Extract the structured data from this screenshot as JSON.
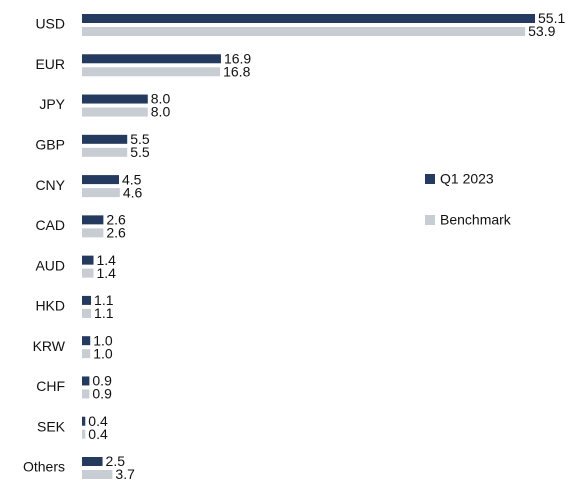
{
  "chart_data": {
    "type": "hbar",
    "categories": [
      "USD",
      "EUR",
      "JPY",
      "GBP",
      "CNY",
      "CAD",
      "AUD",
      "HKD",
      "KRW",
      "CHF",
      "SEK",
      "Others"
    ],
    "series": [
      {
        "name": "Q1 2023",
        "color": "#243a5e",
        "values": [
          55.1,
          16.9,
          8.0,
          5.5,
          4.5,
          2.6,
          1.4,
          1.1,
          1.0,
          0.9,
          0.4,
          2.5
        ],
        "value_labels": [
          "55.1",
          "16.9",
          "8.0",
          "5.5",
          "4.5",
          "2.6",
          "1.4",
          "1.1",
          "1.0",
          "0.9",
          "0.4",
          "2.5"
        ]
      },
      {
        "name": "Benchmark",
        "color": "#c8cdd4",
        "values": [
          53.9,
          16.8,
          8.0,
          5.5,
          4.6,
          2.6,
          1.4,
          1.1,
          1.0,
          0.9,
          0.4,
          3.7
        ],
        "value_labels": [
          "53.9",
          "16.8",
          "8.0",
          "5.5",
          "4.6",
          "2.6",
          "1.4",
          "1.1",
          "1.0",
          "0.9",
          "0.4",
          "3.7"
        ]
      }
    ],
    "legend": "right"
  }
}
